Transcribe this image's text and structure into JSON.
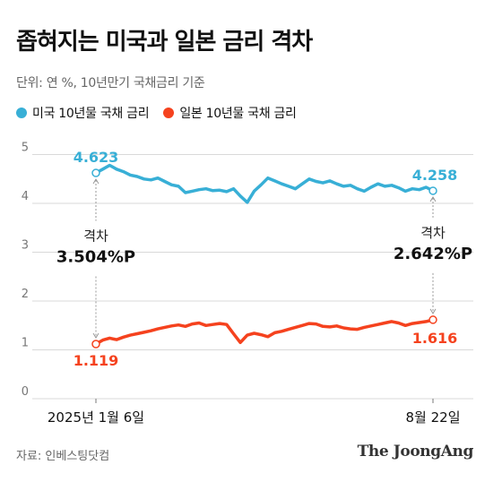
{
  "header": {
    "title": "좁혀지는 미국과 일본 금리 격차",
    "subtitle": "단위: 연 %, 10년만기 국채금리 기준"
  },
  "footer": {
    "source": "자료: 인베스팅닷컴",
    "brand": "The JoongAng"
  },
  "colors": {
    "us": "#38afd6",
    "japan": "#f5421e",
    "grid": "#d9d9d9",
    "axis_text": "#777777",
    "gap_line": "#999999"
  },
  "chart_data": {
    "type": "line",
    "title": "좁혀지는 미국과 일본 금리 격차",
    "xlabel": "",
    "ylabel": "",
    "ylim": [
      0,
      5
    ],
    "yticks": [
      0,
      1,
      2,
      3,
      4,
      5
    ],
    "grid": true,
    "legend_position": "top-left",
    "x_start_label": "2025년 1월 6일",
    "x_end_label": "8월 22일",
    "series": [
      {
        "name": "미국 10년물 국채 금리",
        "color": "#38afd6",
        "start_value": 4.623,
        "end_value": 4.258,
        "start_label": "4.623",
        "end_label": "4.258",
        "values": [
          4.623,
          4.7,
          4.78,
          4.7,
          4.65,
          4.58,
          4.55,
          4.5,
          4.48,
          4.52,
          4.45,
          4.38,
          4.35,
          4.22,
          4.25,
          4.28,
          4.3,
          4.26,
          4.27,
          4.24,
          4.3,
          4.15,
          4.02,
          4.25,
          4.38,
          4.52,
          4.46,
          4.4,
          4.35,
          4.3,
          4.4,
          4.5,
          4.45,
          4.42,
          4.46,
          4.4,
          4.35,
          4.37,
          4.3,
          4.25,
          4.33,
          4.4,
          4.35,
          4.37,
          4.32,
          4.25,
          4.3,
          4.28,
          4.33,
          4.258
        ]
      },
      {
        "name": "일본 10년물 국채 금리",
        "color": "#f5421e",
        "start_value": 1.119,
        "end_value": 1.616,
        "start_label": "1.119",
        "end_label": "1.616",
        "values": [
          1.119,
          1.2,
          1.24,
          1.21,
          1.26,
          1.3,
          1.33,
          1.36,
          1.39,
          1.43,
          1.46,
          1.49,
          1.51,
          1.48,
          1.53,
          1.55,
          1.5,
          1.52,
          1.54,
          1.52,
          1.33,
          1.15,
          1.3,
          1.34,
          1.31,
          1.27,
          1.35,
          1.38,
          1.42,
          1.46,
          1.5,
          1.54,
          1.53,
          1.48,
          1.47,
          1.49,
          1.45,
          1.43,
          1.42,
          1.46,
          1.49,
          1.52,
          1.55,
          1.58,
          1.55,
          1.5,
          1.54,
          1.56,
          1.58,
          1.616
        ]
      }
    ],
    "annotations": [
      {
        "label": "격차",
        "value": "3.504%P"
      },
      {
        "label": "격차",
        "value": "2.642%P"
      }
    ]
  }
}
